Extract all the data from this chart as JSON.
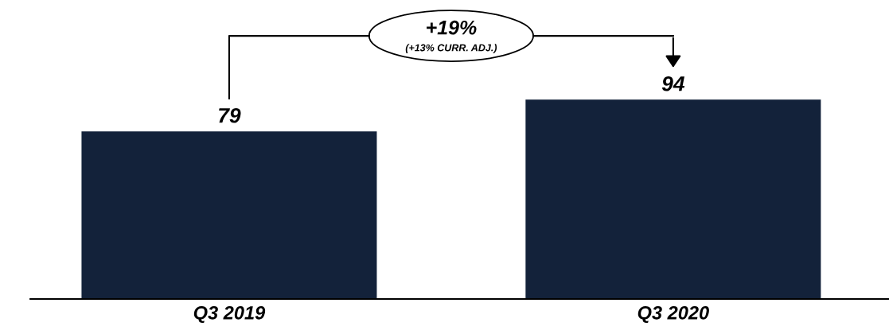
{
  "chart_data": {
    "type": "bar",
    "categories": [
      "Q3 2019",
      "Q3 2020"
    ],
    "values": [
      79,
      94
    ],
    "color": "#13223a",
    "data_labels": true,
    "grid": false,
    "legend": false,
    "annotations": [
      "+19%",
      "(+13% CURR. ADJ.)"
    ]
  }
}
